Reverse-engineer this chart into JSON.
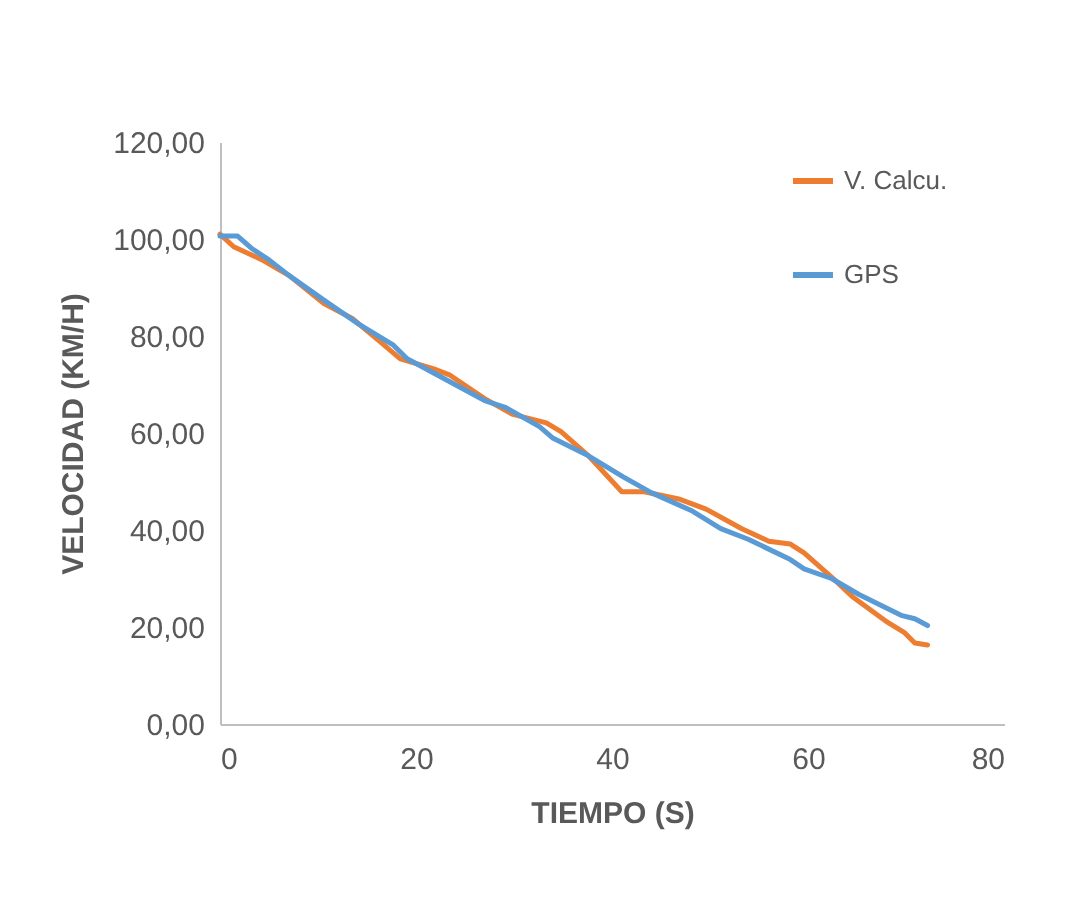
{
  "chart_data": {
    "type": "line",
    "xlabel": "TIEMPO (S)",
    "ylabel": "VELOCIDAD (KM/H)",
    "xlim": [
      0,
      80
    ],
    "xticks": [
      0,
      20,
      40,
      60,
      80
    ],
    "ylim": [
      0,
      120
    ],
    "yticks": [
      {
        "value": 0,
        "label": "0,00"
      },
      {
        "value": 20,
        "label": "20,00"
      },
      {
        "value": 40,
        "label": "40,00"
      },
      {
        "value": 60,
        "label": "60,00"
      },
      {
        "value": 80,
        "label": "80,00"
      },
      {
        "value": 100,
        "label": "100,00"
      },
      {
        "value": 120,
        "label": "120,00"
      }
    ],
    "grid": false,
    "legend": "right",
    "marker": "none",
    "line_style": "solid",
    "series": [
      {
        "name": "V. Calcu.",
        "color": "#ed7d31",
        "x": [
          0,
          1.4,
          4.3,
          7.1,
          10.6,
          13.5,
          16.3,
          18.4,
          22,
          23.4,
          27,
          29.8,
          33.3,
          34.8,
          37.6,
          41,
          43.3,
          46.8,
          49.6,
          53.2,
          56,
          58.2,
          59.6,
          62.4,
          64.5,
          68.1,
          69.8,
          70.9,
          72.2
        ],
        "values": [
          101,
          98.4,
          95.7,
          92.4,
          86.7,
          83.6,
          78.9,
          75.3,
          73.1,
          72,
          67.1,
          63.9,
          62.1,
          60.3,
          55.3,
          47.9,
          47.9,
          46.4,
          44.3,
          40.3,
          37.7,
          37.1,
          35.3,
          30.3,
          26.3,
          21,
          18.9,
          16.7,
          16.3
        ]
      },
      {
        "name": "GPS",
        "color": "#5b9bd5",
        "x": [
          0,
          1.8,
          3.2,
          5,
          7.1,
          10.6,
          14.2,
          17.7,
          19.1,
          22.7,
          27,
          29.1,
          32.6,
          34,
          37.6,
          41.1,
          44,
          48.2,
          51.1,
          53.9,
          58.2,
          59.6,
          62.4,
          65.2,
          69.5,
          70.9,
          72.2
        ],
        "values": [
          100.6,
          100.6,
          98.1,
          95.7,
          92.4,
          87.4,
          82.4,
          78.1,
          75.3,
          71.4,
          66.7,
          65.3,
          61.3,
          58.9,
          55.3,
          51,
          47.7,
          43.9,
          40.3,
          38.1,
          33.9,
          32,
          30,
          26.7,
          22.4,
          21.7,
          20.3
        ]
      }
    ]
  }
}
